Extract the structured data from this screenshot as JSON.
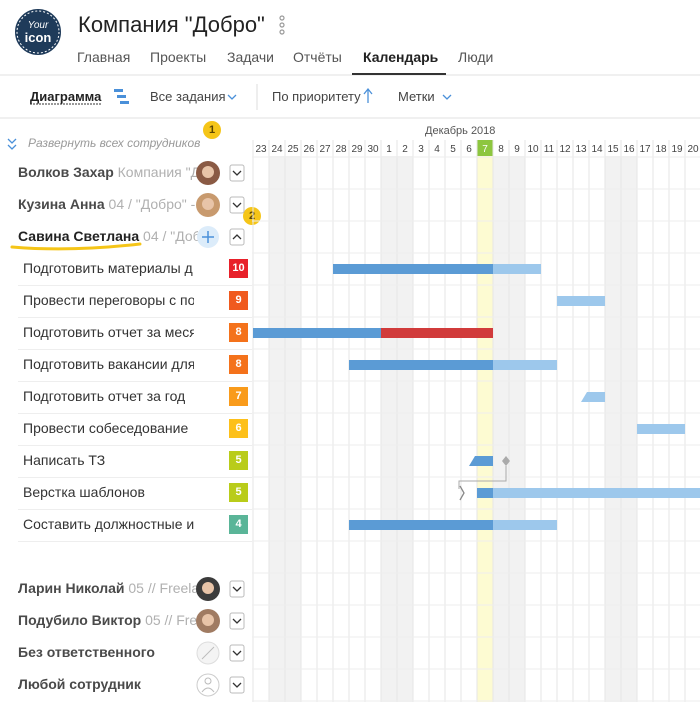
{
  "header": {
    "logo": [
      "Your",
      "icon"
    ],
    "title": "Компания \"Добро\"",
    "nav": [
      "Главная",
      "Проекты",
      "Задачи",
      "Отчёты",
      "Календарь",
      "Люди"
    ]
  },
  "toolbar": {
    "view": "Диаграмма",
    "filter": "Все задания",
    "sort": "По приоритету",
    "tags": "Метки"
  },
  "sidebar": {
    "expand_all": "Развернуть всех сотрудников",
    "badges": [
      1,
      2
    ]
  },
  "calendar": {
    "month": "Декабрь 2018",
    "days": [
      23,
      24,
      25,
      26,
      27,
      28,
      29,
      30,
      1,
      2,
      3,
      4,
      5,
      6,
      7,
      8,
      9,
      10,
      11,
      12,
      13,
      14,
      15,
      16,
      17,
      18,
      19,
      20
    ]
  },
  "people": [
    {
      "name": "Волков Захар",
      "info": "Компания \"Д"
    },
    {
      "name": "Кузина Анна",
      "info": "04 / \"Добро\" -"
    },
    {
      "name": "Савина Светлана",
      "info": "04 / \"Доб",
      "tasks": [
        {
          "title": "Подготовить материалы д",
          "priority": 10,
          "color": "#e8202a"
        },
        {
          "title": "Провести переговоры с по",
          "priority": 9,
          "color": "#f05a1e"
        },
        {
          "title": "Подготовить отчет за меся",
          "priority": 8,
          "color": "#f4721b"
        },
        {
          "title": "Подготовить вакансии для",
          "priority": 8,
          "color": "#f4721b"
        },
        {
          "title": "Подготовить отчет за год",
          "priority": 7,
          "color": "#f99b1b"
        },
        {
          "title": "Провести собеседование",
          "priority": 6,
          "color": "#fdc01a"
        },
        {
          "title": "Написать ТЗ",
          "priority": 5,
          "color": "#b9cc1a"
        },
        {
          "title": "Верстка шаблонов",
          "priority": 5,
          "color": "#b9cc1a"
        },
        {
          "title": "Составить должностные и",
          "priority": 4,
          "color": "#5ab598"
        }
      ]
    },
    {
      "name": "Ларин Николай",
      "info": "05 // Freela"
    },
    {
      "name": "Подубило Виктор",
      "info": "05 // Fre"
    },
    {
      "name": "Без ответственного",
      "info": ""
    },
    {
      "name": "Любой сотрудник",
      "info": ""
    }
  ]
}
